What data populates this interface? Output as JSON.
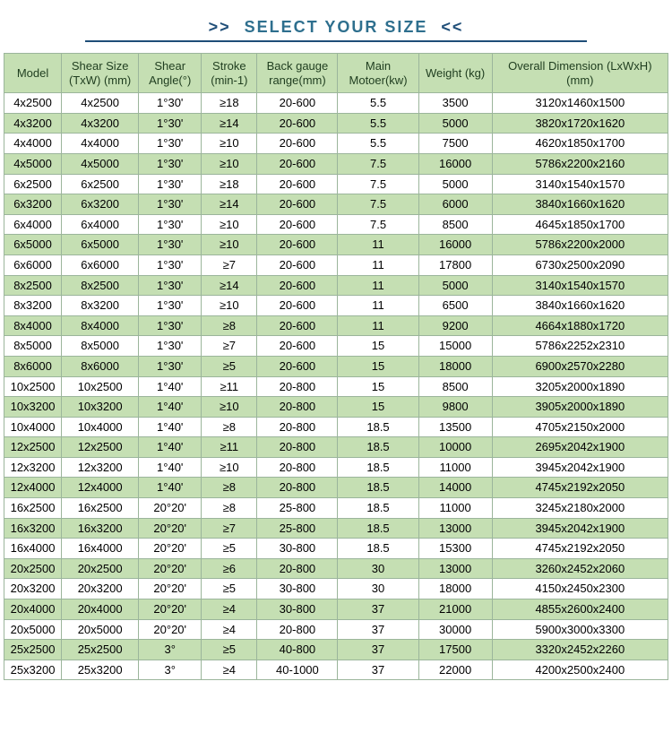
{
  "header": {
    "arrow_left": ">>",
    "text": "SELECT YOUR SIZE",
    "arrow_right": "<<",
    "arrow_color": "#1f4e78",
    "text_color": "#2e6f8e",
    "line_color": "#1f4e78"
  },
  "table": {
    "type": "table",
    "header_bg": "#c5dfb3",
    "row_alt_bg": "#c5dfb3",
    "row_bg": "#ffffff",
    "border_color": "#9bb59b",
    "columns": [
      {
        "label": "Model",
        "width": 64
      },
      {
        "label": "Shear Size (TxW) (mm)",
        "width": 86
      },
      {
        "label": "Shear Angle(°)",
        "width": 70
      },
      {
        "label": "Stroke (min-1)",
        "width": 62
      },
      {
        "label": "Back gauge range(mm)",
        "width": 90
      },
      {
        "label": "Main Motoer(kw)",
        "width": 90
      },
      {
        "label": "Weight (kg)",
        "width": 82
      },
      {
        "label": "Overall Dimension (LxWxH) (mm)",
        "width": 196
      }
    ],
    "rows": [
      [
        "4x2500",
        "4x2500",
        "1°30'",
        "≥18",
        "20-600",
        "5.5",
        "3500",
        "3120x1460x1500"
      ],
      [
        "4x3200",
        "4x3200",
        "1°30'",
        "≥14",
        "20-600",
        "5.5",
        "5000",
        "3820x1720x1620"
      ],
      [
        "4x4000",
        "4x4000",
        "1°30'",
        "≥10",
        "20-600",
        "5.5",
        "7500",
        "4620x1850x1700"
      ],
      [
        "4x5000",
        "4x5000",
        "1°30'",
        "≥10",
        "20-600",
        "7.5",
        "16000",
        "5786x2200x2160"
      ],
      [
        "6x2500",
        "6x2500",
        "1°30'",
        "≥18",
        "20-600",
        "7.5",
        "5000",
        "3140x1540x1570"
      ],
      [
        "6x3200",
        "6x3200",
        "1°30'",
        "≥14",
        "20-600",
        "7.5",
        "6000",
        "3840x1660x1620"
      ],
      [
        "6x4000",
        "6x4000",
        "1°30'",
        "≥10",
        "20-600",
        "7.5",
        "8500",
        "4645x1850x1700"
      ],
      [
        "6x5000",
        "6x5000",
        "1°30'",
        "≥10",
        "20-600",
        "11",
        "16000",
        "5786x2200x2000"
      ],
      [
        "6x6000",
        "6x6000",
        "1°30'",
        "≥7",
        "20-600",
        "11",
        "17800",
        "6730x2500x2090"
      ],
      [
        "8x2500",
        "8x2500",
        "1°30'",
        "≥14",
        "20-600",
        "11",
        "5000",
        "3140x1540x1570"
      ],
      [
        "8x3200",
        "8x3200",
        "1°30'",
        "≥10",
        "20-600",
        "11",
        "6500",
        "3840x1660x1620"
      ],
      [
        "8x4000",
        "8x4000",
        "1°30'",
        "≥8",
        "20-600",
        "11",
        "9200",
        "4664x1880x1720"
      ],
      [
        "8x5000",
        "8x5000",
        "1°30'",
        "≥7",
        "20-600",
        "15",
        "15000",
        "5786x2252x2310"
      ],
      [
        "8x6000",
        "8x6000",
        "1°30'",
        "≥5",
        "20-600",
        "15",
        "18000",
        "6900x2570x2280"
      ],
      [
        "10x2500",
        "10x2500",
        "1°40'",
        "≥11",
        "20-800",
        "15",
        "8500",
        "3205x2000x1890"
      ],
      [
        "10x3200",
        "10x3200",
        "1°40'",
        "≥10",
        "20-800",
        "15",
        "9800",
        "3905x2000x1890"
      ],
      [
        "10x4000",
        "10x4000",
        "1°40'",
        "≥8",
        "20-800",
        "18.5",
        "13500",
        "4705x2150x2000"
      ],
      [
        "12x2500",
        "12x2500",
        "1°40'",
        "≥11",
        "20-800",
        "18.5",
        "10000",
        "2695x2042x1900"
      ],
      [
        "12x3200",
        "12x3200",
        "1°40'",
        "≥10",
        "20-800",
        "18.5",
        "11000",
        "3945x2042x1900"
      ],
      [
        "12x4000",
        "12x4000",
        "1°40'",
        "≥8",
        "20-800",
        "18.5",
        "14000",
        "4745x2192x2050"
      ],
      [
        "16x2500",
        "16x2500",
        "20°20'",
        "≥8",
        "25-800",
        "18.5",
        "11000",
        "3245x2180x2000"
      ],
      [
        "16x3200",
        "16x3200",
        "20°20'",
        "≥7",
        "25-800",
        "18.5",
        "13000",
        "3945x2042x1900"
      ],
      [
        "16x4000",
        "16x4000",
        "20°20'",
        "≥5",
        "30-800",
        "18.5",
        "15300",
        "4745x2192x2050"
      ],
      [
        "20x2500",
        "20x2500",
        "20°20'",
        "≥6",
        "20-800",
        "30",
        "13000",
        "3260x2452x2060"
      ],
      [
        "20x3200",
        "20x3200",
        "20°20'",
        "≥5",
        "30-800",
        "30",
        "18000",
        "4150x2450x2300"
      ],
      [
        "20x4000",
        "20x4000",
        "20°20'",
        "≥4",
        "30-800",
        "37",
        "21000",
        "4855x2600x2400"
      ],
      [
        "20x5000",
        "20x5000",
        "20°20'",
        "≥4",
        "20-800",
        "37",
        "30000",
        "5900x3000x3300"
      ],
      [
        "25x2500",
        "25x2500",
        "3°",
        "≥5",
        "40-800",
        "37",
        "17500",
        "3320x2452x2260"
      ],
      [
        "25x3200",
        "25x3200",
        "3°",
        "≥4",
        "40-1000",
        "37",
        "22000",
        "4200x2500x2400"
      ]
    ]
  }
}
